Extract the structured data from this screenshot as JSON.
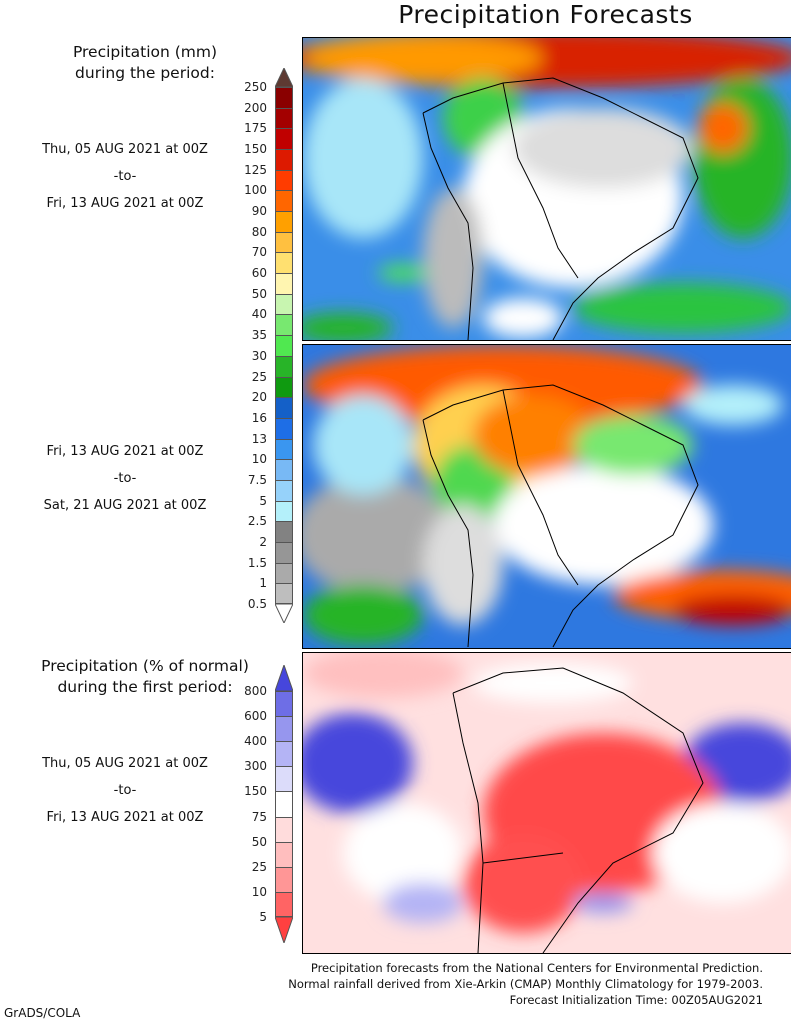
{
  "title": "Precipitation Forecasts",
  "panel_mm": {
    "header": [
      "Precipitation (mm)",
      "during the period:"
    ],
    "period1": {
      "start": "Thu, 05 AUG 2021 at 00Z",
      "sep": "-to-",
      "end": "Fri, 13 AUG 2021 at 00Z"
    },
    "period2": {
      "start": "Fri, 13 AUG 2021 at 00Z",
      "sep": "-to-",
      "end": "Sat, 21 AUG 2021 at 00Z"
    },
    "colorbar": {
      "labels": [
        "250",
        "200",
        "175",
        "150",
        "125",
        "100",
        "90",
        "80",
        "70",
        "60",
        "50",
        "40",
        "35",
        "30",
        "25",
        "20",
        "16",
        "13",
        "10",
        "7.5",
        "5",
        "2.5",
        "2",
        "1.5",
        "1",
        "0.5"
      ],
      "colors": [
        "#8a0000",
        "#a30000",
        "#c00000",
        "#dd1a00",
        "#ff3c00",
        "#ff6600",
        "#ffa000",
        "#ffc040",
        "#ffe070",
        "#fff5b0",
        "#c8f5b0",
        "#78e870",
        "#50e850",
        "#28b428",
        "#0f9a10",
        "#1460c8",
        "#1e6ee6",
        "#3a96f0",
        "#78b9f5",
        "#96d2fa",
        "#b4f0fa",
        "#828282",
        "#969696",
        "#aaaaaa",
        "#bebebe"
      ],
      "over_color": "#5e3a32",
      "under_color": "#ffffff"
    }
  },
  "panel_pct": {
    "header": [
      "Precipitation (% of normal)",
      "during the first period:"
    ],
    "period": {
      "start": "Thu, 05 AUG 2021 at 00Z",
      "sep": "-to-",
      "end": "Fri, 13 AUG 2021 at 00Z"
    },
    "colorbar": {
      "labels": [
        "800",
        "600",
        "400",
        "300",
        "150",
        "75",
        "50",
        "25",
        "10",
        "5"
      ],
      "colors": [
        "#6e6ee6",
        "#9696ee",
        "#b4b4f5",
        "#dcdcfa",
        "#ffffff",
        "#ffdcdc",
        "#ffbebe",
        "#ff9696",
        "#ff6464"
      ],
      "over_color": "#4646dc",
      "under_color": "#ff4040"
    }
  },
  "footer": [
    "Precipitation forecasts from the National Centers for Environmental Prediction.",
    "Normal rainfall derived from Xie-Arkin (CMAP) Monthly Climatology for 1979-2003.",
    "Forecast Initialization Time: 00Z05AUG2021"
  ],
  "credit": "GrADS/COLA"
}
